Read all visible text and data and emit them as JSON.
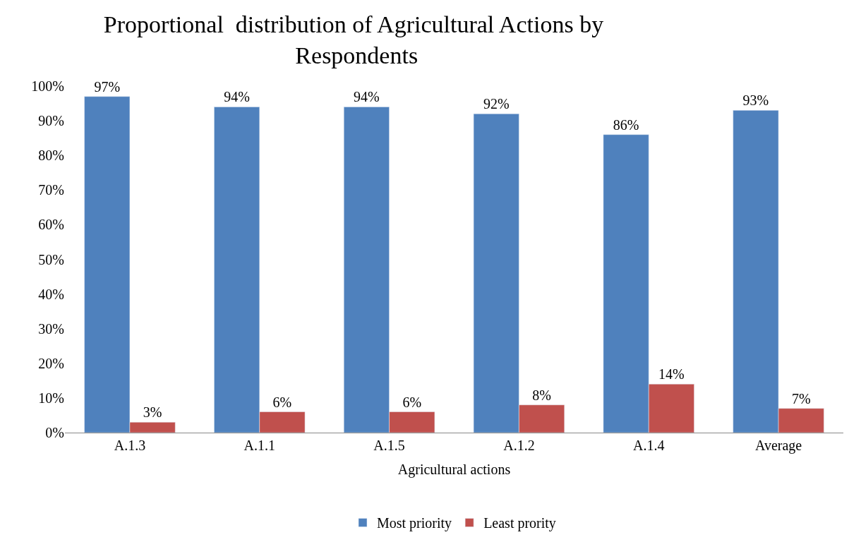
{
  "chart_data": {
    "type": "bar",
    "title": "Proportional  distribution of Agricultural Actions by Respondents",
    "xlabel": "Agricultural actions",
    "categories": [
      "A.1.3",
      "A.1.1",
      "A.1.5",
      "A.1.2",
      "A.1.4",
      "Average"
    ],
    "series": [
      {
        "name": "Most priority",
        "color": "#4f81bd",
        "values": [
          97,
          94,
          94,
          92,
          86,
          93
        ],
        "value_labels": [
          "97%",
          "94%",
          "94%",
          "92%",
          "86%",
          "93%"
        ]
      },
      {
        "name": "Least prority",
        "color": "#c0504d",
        "values": [
          3,
          6,
          6,
          8,
          14,
          7
        ],
        "value_labels": [
          "3%",
          "6%",
          "6%",
          "8%",
          "14%",
          "7%"
        ]
      }
    ],
    "ylim": [
      0,
      100
    ],
    "yticks": [
      {
        "value": 0,
        "label": "0%"
      },
      {
        "value": 10,
        "label": "10%"
      },
      {
        "value": 20,
        "label": "20%"
      },
      {
        "value": 30,
        "label": "30%"
      },
      {
        "value": 40,
        "label": "40%"
      },
      {
        "value": 50,
        "label": "50%"
      },
      {
        "value": 60,
        "label": "60%"
      },
      {
        "value": 70,
        "label": "70%"
      },
      {
        "value": 80,
        "label": "80%"
      },
      {
        "value": 90,
        "label": "90%"
      },
      {
        "value": 100,
        "label": "100%"
      }
    ],
    "legend": "bottom"
  }
}
